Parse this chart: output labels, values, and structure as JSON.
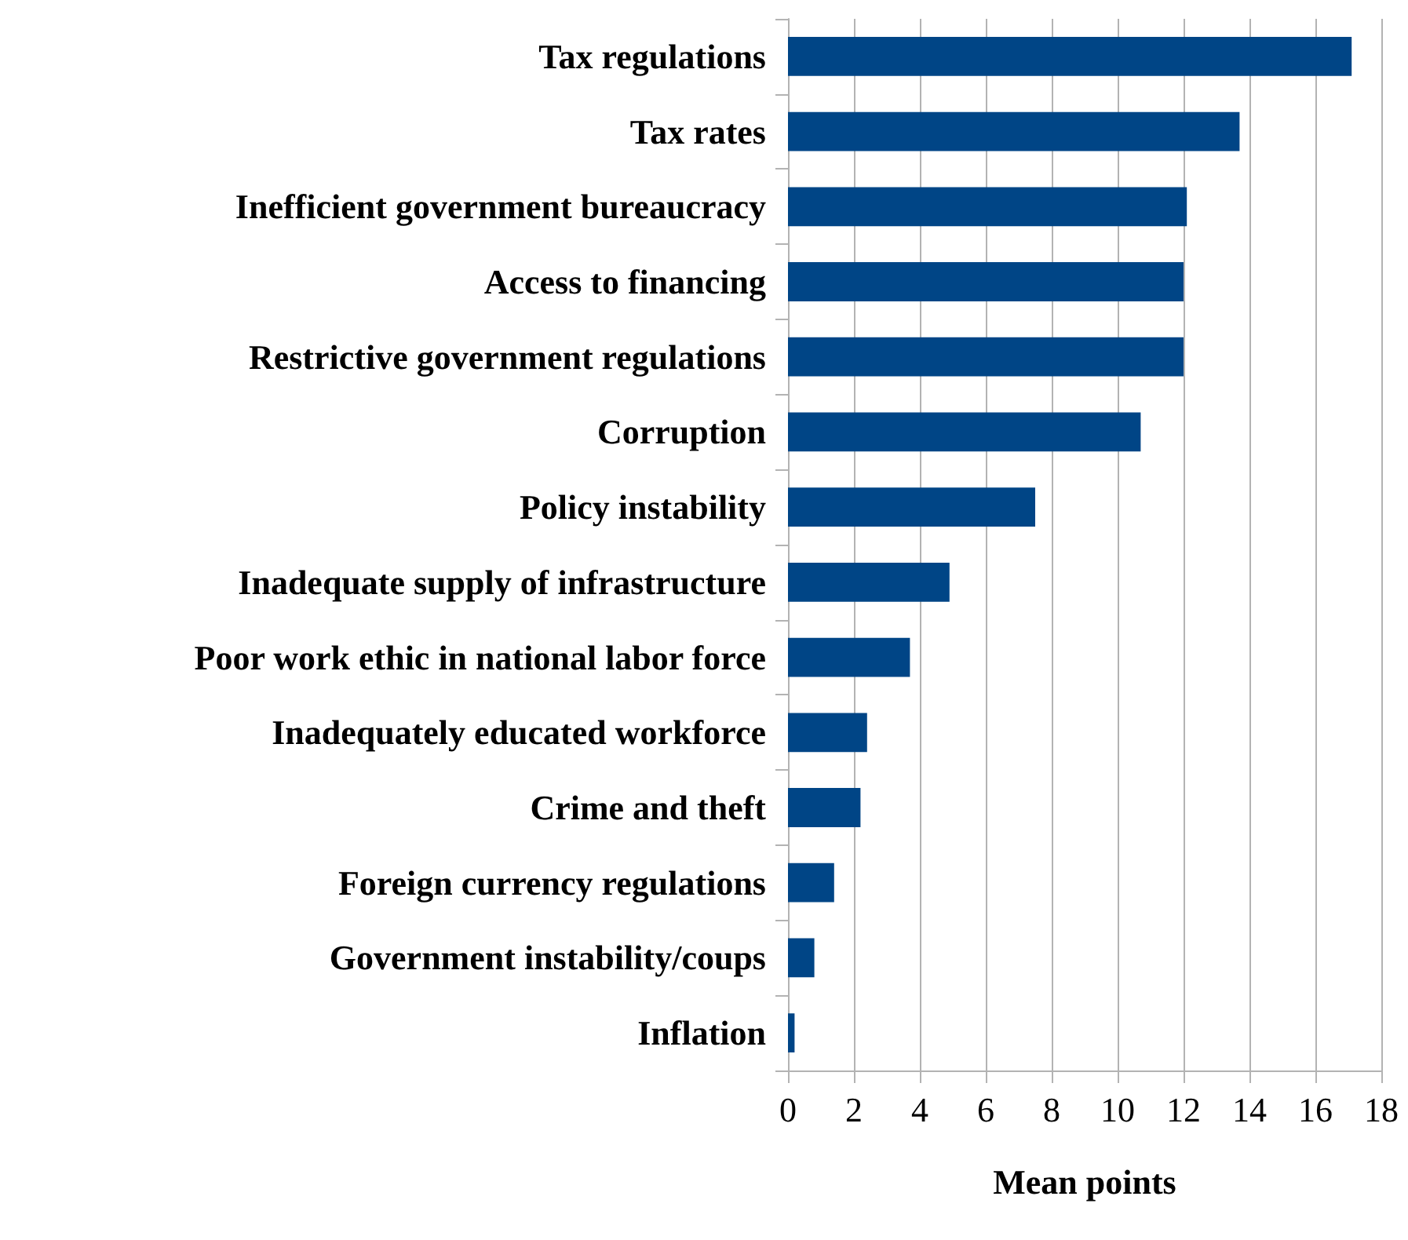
{
  "chart_data": {
    "type": "bar",
    "orientation": "horizontal",
    "xlabel": "Mean points",
    "categories": [
      "Tax regulations",
      "Tax rates",
      "Inefficient government bureaucracy",
      "Access to financing",
      "Restrictive government regulations",
      "Corruption",
      "Policy instability",
      "Inadequate supply of infrastructure",
      "Poor work ethic in national labor force",
      "Inadequately educated workforce",
      "Crime and theft",
      "Foreign currency regulations",
      "Government instability/coups",
      "Inflation"
    ],
    "values": [
      17.1,
      13.7,
      12.1,
      12.0,
      12.0,
      10.7,
      7.5,
      4.9,
      3.7,
      2.4,
      2.2,
      1.4,
      0.8,
      0.2
    ],
    "color": "#004586",
    "xlim": [
      0,
      18
    ],
    "xticks": [
      0,
      2,
      4,
      6,
      8,
      10,
      12,
      14,
      16,
      18
    ],
    "grid": "x"
  }
}
